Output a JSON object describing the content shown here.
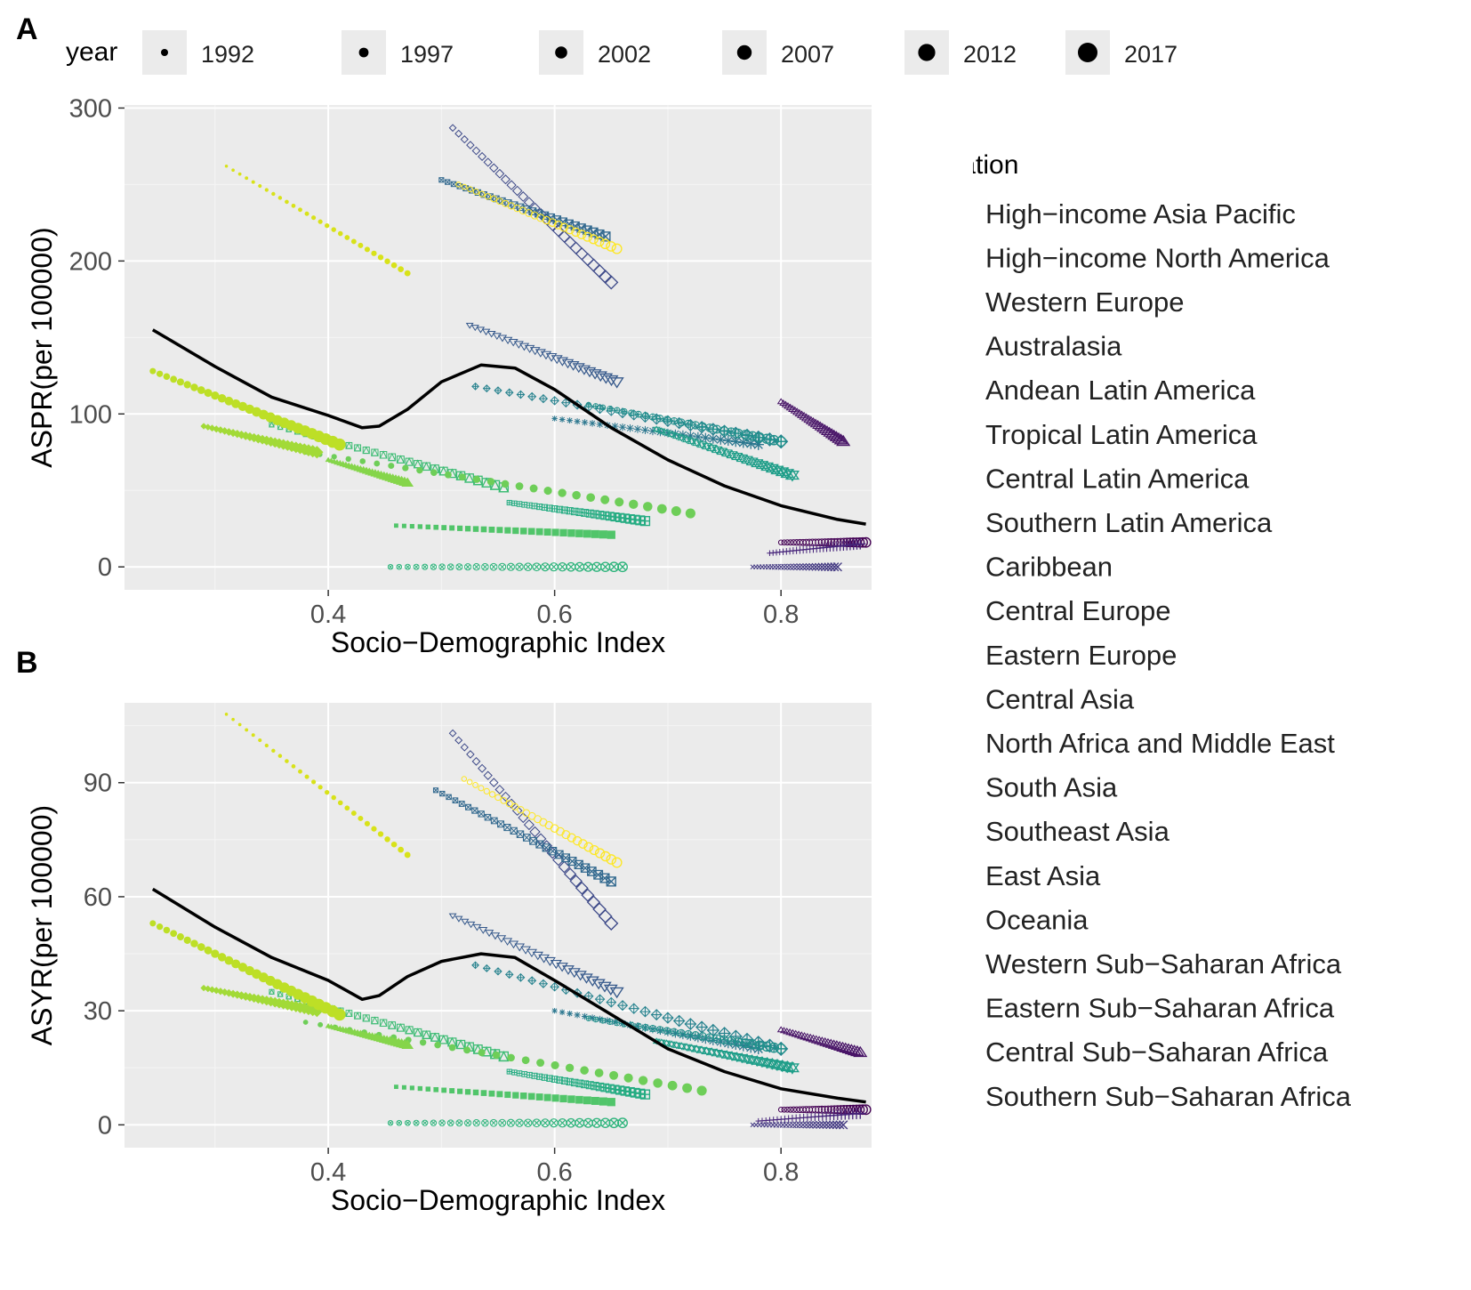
{
  "colors": {
    "panel_bg": "#EBEBEB",
    "grid_major": "#FFFFFF",
    "fitted_line": "#000000",
    "axis_text": "#4D4D4D"
  },
  "panel_labels": {
    "a": "A",
    "b": "B"
  },
  "size_legend": {
    "title": "year",
    "years": [
      "1992",
      "1997",
      "2002",
      "2007",
      "2012",
      "2017"
    ]
  },
  "location_legend": {
    "title": "location",
    "items": [
      {
        "label": "High−income Asia Pacific",
        "shape": "circle-open",
        "color": "#440154"
      },
      {
        "label": "High−income North America",
        "shape": "triangle-open",
        "color": "#481467"
      },
      {
        "label": "Western Europe",
        "shape": "plus",
        "color": "#46247A"
      },
      {
        "label": "Australasia",
        "shape": "cross",
        "color": "#433982"
      },
      {
        "label": "Andean Latin America",
        "shape": "diamond-open",
        "color": "#3E4A89"
      },
      {
        "label": "Tropical Latin America",
        "shape": "triangle-down-open",
        "color": "#375A8C"
      },
      {
        "label": "Central Latin America",
        "shape": "square-cross",
        "color": "#31688E"
      },
      {
        "label": "Southern Latin America",
        "shape": "asterisk",
        "color": "#2C778F"
      },
      {
        "label": "Caribbean",
        "shape": "diamond-plus",
        "color": "#26828E"
      },
      {
        "label": "Central Europe",
        "shape": "circle-plus",
        "color": "#21918C"
      },
      {
        "label": "Eastern Europe",
        "shape": "triangle-up-down",
        "color": "#1F9E89"
      },
      {
        "label": "Central Asia",
        "shape": "square-plus",
        "color": "#25AC82"
      },
      {
        "label": "North Africa and Middle East",
        "shape": "circle-cross",
        "color": "#2FB47C"
      },
      {
        "label": "South Asia",
        "shape": "square-triangle",
        "color": "#3DBC74"
      },
      {
        "label": "Southeast Asia",
        "shape": "square-filled",
        "color": "#51C56A"
      },
      {
        "label": "East Asia",
        "shape": "circle-filled",
        "color": "#6ECE58"
      },
      {
        "label": "Oceania",
        "shape": "triangle-filled",
        "color": "#85D54A"
      },
      {
        "label": "Western Sub−Saharan Africa",
        "shape": "diamond-filled",
        "color": "#A2DA37"
      },
      {
        "label": "Eastern Sub−Saharan Africa",
        "shape": "circle-large",
        "color": "#BDDF26"
      },
      {
        "label": "Central Sub−Saharan Africa",
        "shape": "circle-small",
        "color": "#D8E219"
      },
      {
        "label": "Southern Sub−Saharan Africa",
        "shape": "circle-open",
        "color": "#FDE725"
      }
    ]
  },
  "chart_data": [
    {
      "type": "scatter",
      "panel": "A",
      "xlabel": "Socio−Demographic Index",
      "ylabel": "ASPR(per 100000)",
      "xlim": [
        0.22,
        0.88
      ],
      "ylim": [
        -15,
        302
      ],
      "x_ticks": [
        0.4,
        0.6,
        0.8
      ],
      "x_tick_labels": [
        "0.4",
        "0.6",
        "0.8"
      ],
      "y_ticks": [
        0,
        100,
        200,
        300
      ],
      "y_tick_labels": [
        "0",
        "100",
        "200",
        "300"
      ],
      "fitted_line": {
        "x": [
          0.245,
          0.3,
          0.35,
          0.4,
          0.43,
          0.445,
          0.47,
          0.5,
          0.535,
          0.565,
          0.6,
          0.65,
          0.7,
          0.75,
          0.8,
          0.85,
          0.875
        ],
        "y": [
          155,
          131,
          111,
          99,
          91,
          92,
          103,
          121,
          132,
          130,
          116,
          91,
          70,
          53,
          40,
          31,
          28
        ]
      },
      "series": [
        {
          "name": "High−income Asia Pacific",
          "x_start": 0.8,
          "x_end": 0.875,
          "y_start": 16,
          "y_end": 16
        },
        {
          "name": "High−income North America",
          "x_start": 0.8,
          "x_end": 0.855,
          "y_start": 108,
          "y_end": 82
        },
        {
          "name": "Western Europe",
          "x_start": 0.79,
          "x_end": 0.87,
          "y_start": 9,
          "y_end": 15
        },
        {
          "name": "Australasia",
          "x_start": 0.775,
          "x_end": 0.85,
          "y_start": 0,
          "y_end": 0
        },
        {
          "name": "Andean Latin America",
          "x_start": 0.51,
          "x_end": 0.65,
          "y_start": 287,
          "y_end": 186
        },
        {
          "name": "Tropical Latin America",
          "x_start": 0.525,
          "x_end": 0.655,
          "y_start": 158,
          "y_end": 121
        },
        {
          "name": "Central Latin America",
          "x_start": 0.5,
          "x_end": 0.645,
          "y_start": 253,
          "y_end": 216
        },
        {
          "name": "Southern Latin America",
          "x_start": 0.6,
          "x_end": 0.78,
          "y_start": 97,
          "y_end": 80
        },
        {
          "name": "Caribbean",
          "x_start": 0.53,
          "x_end": 0.8,
          "y_start": 118,
          "y_end": 82
        },
        {
          "name": "Central Europe",
          "x_start": 0.63,
          "x_end": 0.8,
          "y_start": 106,
          "y_end": 82
        },
        {
          "name": "Eastern Europe",
          "x_start": 0.69,
          "x_end": 0.81,
          "y_start": 90,
          "y_end": 60
        },
        {
          "name": "Central Asia",
          "x_start": 0.56,
          "x_end": 0.68,
          "y_start": 42,
          "y_end": 30
        },
        {
          "name": "North Africa and Middle East",
          "x_start": 0.455,
          "x_end": 0.66,
          "y_start": 0,
          "y_end": 0
        },
        {
          "name": "South Asia",
          "x_start": 0.35,
          "x_end": 0.555,
          "y_start": 93,
          "y_end": 52
        },
        {
          "name": "Southeast Asia",
          "x_start": 0.46,
          "x_end": 0.65,
          "y_start": 27,
          "y_end": 21
        },
        {
          "name": "East Asia",
          "x_start": 0.38,
          "x_end": 0.72,
          "y_start": 75,
          "y_end": 35
        },
        {
          "name": "Oceania",
          "x_start": 0.4,
          "x_end": 0.47,
          "y_start": 70,
          "y_end": 55
        },
        {
          "name": "Western Sub−Saharan Africa",
          "x_start": 0.29,
          "x_end": 0.39,
          "y_start": 92,
          "y_end": 75
        },
        {
          "name": "Eastern Sub−Saharan Africa",
          "x_start": 0.245,
          "x_end": 0.41,
          "y_start": 128,
          "y_end": 80
        },
        {
          "name": "Central Sub−Saharan Africa",
          "x_start": 0.31,
          "x_end": 0.47,
          "y_start": 262,
          "y_end": 192
        },
        {
          "name": "Southern Sub−Saharan Africa",
          "x_start": 0.515,
          "x_end": 0.655,
          "y_start": 250,
          "y_end": 208
        }
      ]
    },
    {
      "type": "scatter",
      "panel": "B",
      "xlabel": "Socio−Demographic Index",
      "ylabel": "ASYR(per 100000)",
      "xlim": [
        0.22,
        0.88
      ],
      "ylim": [
        -6,
        111
      ],
      "x_ticks": [
        0.4,
        0.6,
        0.8
      ],
      "x_tick_labels": [
        "0.4",
        "0.6",
        "0.8"
      ],
      "y_ticks": [
        0,
        30,
        60,
        90
      ],
      "y_tick_labels": [
        "0",
        "30",
        "60",
        "90"
      ],
      "fitted_line": {
        "x": [
          0.245,
          0.3,
          0.35,
          0.4,
          0.43,
          0.445,
          0.47,
          0.5,
          0.535,
          0.565,
          0.6,
          0.65,
          0.7,
          0.75,
          0.8,
          0.85,
          0.875
        ],
        "y": [
          62,
          52,
          44,
          38,
          33,
          34,
          39,
          43,
          45,
          44,
          38,
          29,
          20,
          14,
          9.5,
          7,
          6
        ]
      },
      "series": [
        {
          "name": "High−income Asia Pacific",
          "x_start": 0.8,
          "x_end": 0.875,
          "y_start": 4,
          "y_end": 4
        },
        {
          "name": "High−income North America",
          "x_start": 0.8,
          "x_end": 0.87,
          "y_start": 25,
          "y_end": 19
        },
        {
          "name": "Western Europe",
          "x_start": 0.78,
          "x_end": 0.87,
          "y_start": 1,
          "y_end": 3
        },
        {
          "name": "Australasia",
          "x_start": 0.775,
          "x_end": 0.855,
          "y_start": 0,
          "y_end": 0
        },
        {
          "name": "Andean Latin America",
          "x_start": 0.51,
          "x_end": 0.65,
          "y_start": 103,
          "y_end": 53
        },
        {
          "name": "Tropical Latin America",
          "x_start": 0.51,
          "x_end": 0.655,
          "y_start": 55,
          "y_end": 35
        },
        {
          "name": "Central Latin America",
          "x_start": 0.495,
          "x_end": 0.65,
          "y_start": 88,
          "y_end": 64
        },
        {
          "name": "Southern Latin America",
          "x_start": 0.6,
          "x_end": 0.78,
          "y_start": 30,
          "y_end": 20
        },
        {
          "name": "Caribbean",
          "x_start": 0.53,
          "x_end": 0.8,
          "y_start": 42,
          "y_end": 20
        },
        {
          "name": "Central Europe",
          "x_start": 0.63,
          "x_end": 0.8,
          "y_start": 28,
          "y_end": 20
        },
        {
          "name": "Eastern Europe",
          "x_start": 0.69,
          "x_end": 0.81,
          "y_start": 22,
          "y_end": 15
        },
        {
          "name": "Central Asia",
          "x_start": 0.56,
          "x_end": 0.68,
          "y_start": 14,
          "y_end": 8
        },
        {
          "name": "North Africa and Middle East",
          "x_start": 0.455,
          "x_end": 0.66,
          "y_start": 0.5,
          "y_end": 0.5
        },
        {
          "name": "South Asia",
          "x_start": 0.35,
          "x_end": 0.555,
          "y_start": 35,
          "y_end": 18
        },
        {
          "name": "Southeast Asia",
          "x_start": 0.46,
          "x_end": 0.65,
          "y_start": 10,
          "y_end": 6
        },
        {
          "name": "East Asia",
          "x_start": 0.38,
          "x_end": 0.73,
          "y_start": 27,
          "y_end": 9
        },
        {
          "name": "Oceania",
          "x_start": 0.4,
          "x_end": 0.47,
          "y_start": 26,
          "y_end": 21
        },
        {
          "name": "Western Sub−Saharan Africa",
          "x_start": 0.29,
          "x_end": 0.39,
          "y_start": 36,
          "y_end": 30
        },
        {
          "name": "Eastern Sub−Saharan Africa",
          "x_start": 0.245,
          "x_end": 0.41,
          "y_start": 53,
          "y_end": 29
        },
        {
          "name": "Central Sub−Saharan Africa",
          "x_start": 0.31,
          "x_end": 0.47,
          "y_start": 108,
          "y_end": 71
        },
        {
          "name": "Southern Sub−Saharan Africa",
          "x_start": 0.52,
          "x_end": 0.655,
          "y_start": 91,
          "y_end": 69
        }
      ]
    }
  ]
}
